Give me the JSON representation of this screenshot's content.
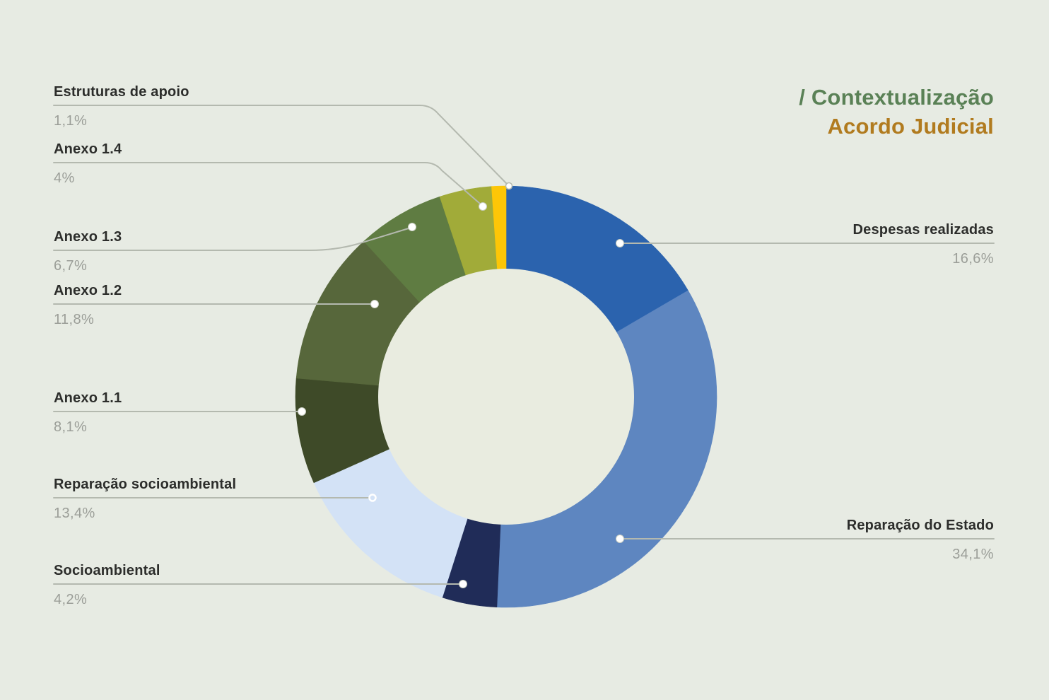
{
  "page": {
    "background_color": "#e7ebe3"
  },
  "header": {
    "breadcrumb": "/ Contextualização",
    "breadcrumb_color": "#5a8156",
    "title": "Acordo Judicial",
    "title_color": "#b17b1f"
  },
  "chart_data": {
    "type": "pie",
    "variant": "donut",
    "title": "Acordo Judicial",
    "subtitle": "/ Contextualização",
    "unit": "%",
    "start_angle_deg": 0,
    "direction": "clockwise",
    "inner_radius_ratio": 0.61,
    "hole_color": "#e9ece0",
    "leader_line_color": "#b4b9af",
    "label_title_color": "#2c2d2b",
    "label_value_color": "#9b9e98",
    "series": [
      {
        "label": "Despesas realizadas",
        "value": 16.6,
        "display": "16,6%",
        "color": "#2b63ae"
      },
      {
        "label": "Reparação do Estado",
        "value": 34.1,
        "display": "34,1%",
        "color": "#5e86c0"
      },
      {
        "label": "Socioambiental",
        "value": 4.2,
        "display": "4,2%",
        "color": "#202c58"
      },
      {
        "label": "Reparação socioambiental",
        "value": 13.4,
        "display": "13,4%",
        "color": "#d3e2f6"
      },
      {
        "label": "Anexo 1.1",
        "value": 8.1,
        "display": "8,1%",
        "color": "#3e4a28"
      },
      {
        "label": "Anexo 1.2",
        "value": 11.8,
        "display": "11,8%",
        "color": "#57673b"
      },
      {
        "label": "Anexo 1.3",
        "value": 6.7,
        "display": "6,7%",
        "color": "#5f7c42"
      },
      {
        "label": "Anexo 1.4",
        "value": 4.0,
        "display": "4%",
        "color": "#a1ab39"
      },
      {
        "label": "Estruturas de apoio",
        "value": 1.1,
        "display": "1,1%",
        "color": "#fdc607"
      }
    ]
  }
}
